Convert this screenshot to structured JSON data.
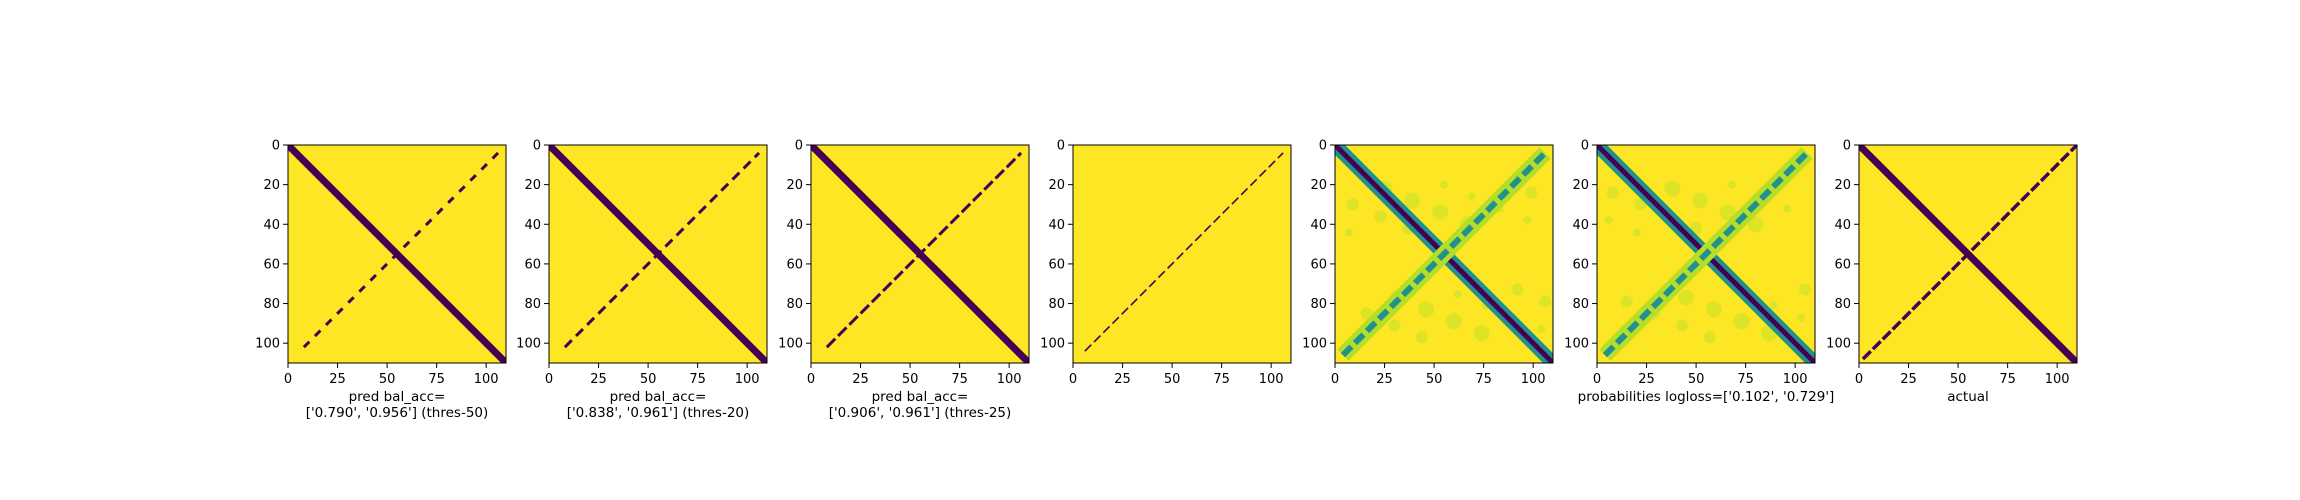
{
  "colors": {
    "background": "#fde725",
    "foreground": "#440154",
    "mid": "#21918c",
    "light": "#b5de2b",
    "frame": "#000000"
  },
  "chart_data": [
    {
      "type": "heatmap",
      "pattern": "x-cross-binary",
      "xlabel_lines": [
        "pred bal_acc=",
        "['0.790', '0.956'] (thres-50)"
      ],
      "xlim": [
        0,
        110
      ],
      "ylim": [
        110,
        0
      ],
      "xticks": [
        0,
        25,
        50,
        75,
        100
      ],
      "yticks": [
        0,
        20,
        40,
        60,
        80,
        100
      ],
      "anti_diagonal_visible": 0.55
    },
    {
      "type": "heatmap",
      "pattern": "x-cross-binary",
      "xlabel_lines": [
        "pred bal_acc=",
        "['0.838', '0.961'] (thres-20)"
      ],
      "xlim": [
        0,
        110
      ],
      "ylim": [
        110,
        0
      ],
      "xticks": [
        0,
        25,
        50,
        75,
        100
      ],
      "yticks": [
        0,
        20,
        40,
        60,
        80,
        100
      ],
      "anti_diagonal_visible": 0.7
    },
    {
      "type": "heatmap",
      "pattern": "x-cross-binary",
      "xlabel_lines": [
        "pred bal_acc=",
        "['0.906', '0.961'] (thres-25)"
      ],
      "xlim": [
        0,
        110
      ],
      "ylim": [
        110,
        0
      ],
      "xticks": [
        0,
        25,
        50,
        75,
        100
      ],
      "yticks": [
        0,
        20,
        40,
        60,
        80,
        100
      ],
      "anti_diagonal_visible": 0.85
    },
    {
      "type": "heatmap",
      "pattern": "anti-diagonal-thin",
      "xlabel_lines": [],
      "xlim": [
        0,
        110
      ],
      "ylim": [
        110,
        0
      ],
      "xticks": [
        0,
        25,
        50,
        75,
        100
      ],
      "yticks": [
        0,
        20,
        40,
        60,
        80,
        100
      ]
    },
    {
      "type": "heatmap",
      "pattern": "x-cross-probability",
      "xlabel_lines": [],
      "xlim": [
        0,
        110
      ],
      "ylim": [
        110,
        0
      ],
      "xticks": [
        0,
        25,
        50,
        75,
        100
      ],
      "yticks": [
        0,
        20,
        40,
        60,
        80,
        100
      ]
    },
    {
      "type": "heatmap",
      "pattern": "x-cross-probability",
      "xlabel_lines": [
        "probabilities logloss=['0.102', '0.729']"
      ],
      "xlim": [
        0,
        110
      ],
      "ylim": [
        110,
        0
      ],
      "xticks": [
        0,
        25,
        50,
        75,
        100
      ],
      "yticks": [
        0,
        20,
        40,
        60,
        80,
        100
      ]
    },
    {
      "type": "heatmap",
      "pattern": "x-cross-actual",
      "xlabel_lines": [
        "actual"
      ],
      "xlim": [
        0,
        110
      ],
      "ylim": [
        110,
        0
      ],
      "xticks": [
        0,
        25,
        50,
        75,
        100
      ],
      "yticks": [
        0,
        20,
        40,
        60,
        80,
        100
      ]
    }
  ]
}
